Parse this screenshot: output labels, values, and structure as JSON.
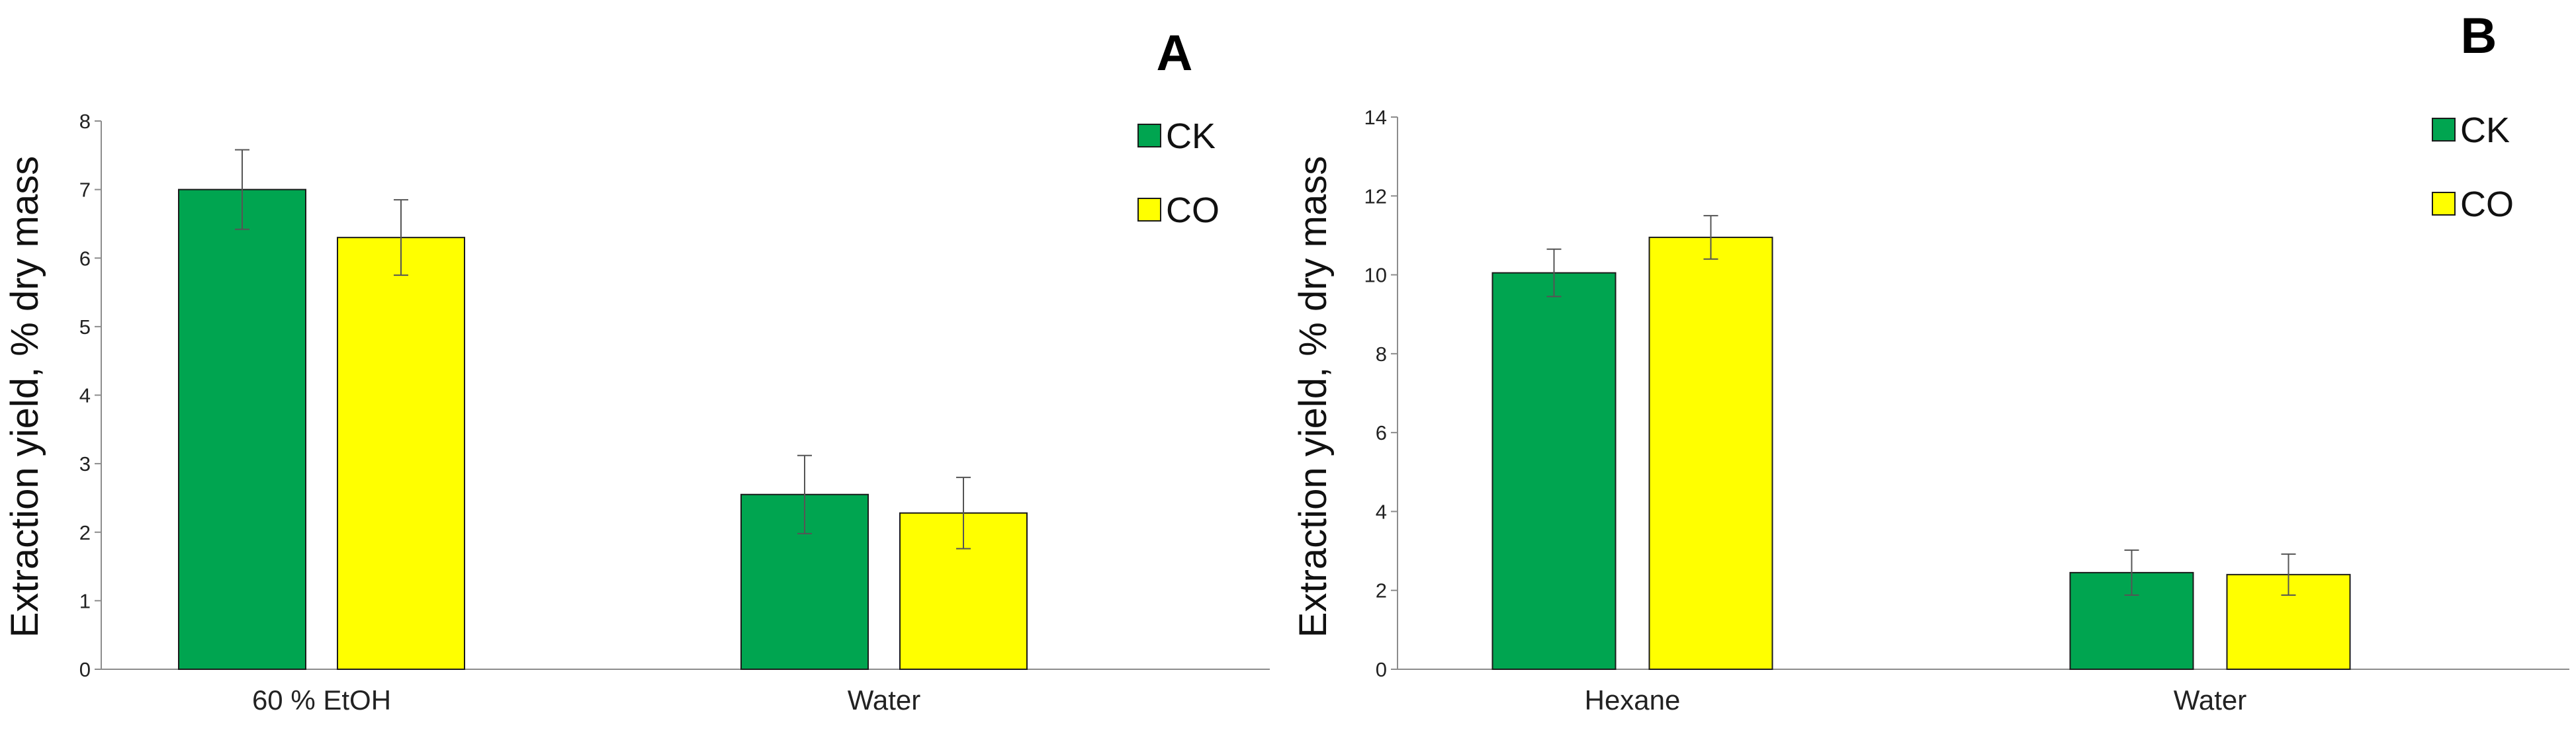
{
  "chart_data": [
    {
      "type": "bar",
      "panel_label": "A",
      "ylabel": "Extraction yield,  % dry mass",
      "xlabel": "",
      "categories": [
        "60 % EtOH",
        "Water"
      ],
      "ylim": [
        0,
        8
      ],
      "yticks": [
        0,
        1,
        2,
        3,
        4,
        5,
        6,
        7,
        8
      ],
      "legend_position": "top-right",
      "series": [
        {
          "name": "CK",
          "color": "#00A550",
          "values": [
            7.0,
            2.55
          ],
          "errors": [
            0.58,
            0.57
          ]
        },
        {
          "name": "CO",
          "color": "#FFFF00",
          "values": [
            6.3,
            2.28
          ],
          "errors": [
            0.55,
            0.52
          ]
        }
      ]
    },
    {
      "type": "bar",
      "panel_label": "B",
      "ylabel": "Extraction yield,  % dry mass",
      "xlabel": "",
      "categories": [
        "Hexane",
        "Water"
      ],
      "ylim": [
        0,
        14
      ],
      "yticks": [
        0,
        2,
        4,
        6,
        8,
        10,
        12,
        14
      ],
      "legend_position": "top-right",
      "series": [
        {
          "name": "CK",
          "color": "#00A550",
          "values": [
            10.05,
            2.45
          ],
          "errors": [
            0.6,
            0.57
          ]
        },
        {
          "name": "CO",
          "color": "#FFFF00",
          "values": [
            10.95,
            2.4
          ],
          "errors": [
            0.55,
            0.52
          ]
        }
      ]
    }
  ]
}
